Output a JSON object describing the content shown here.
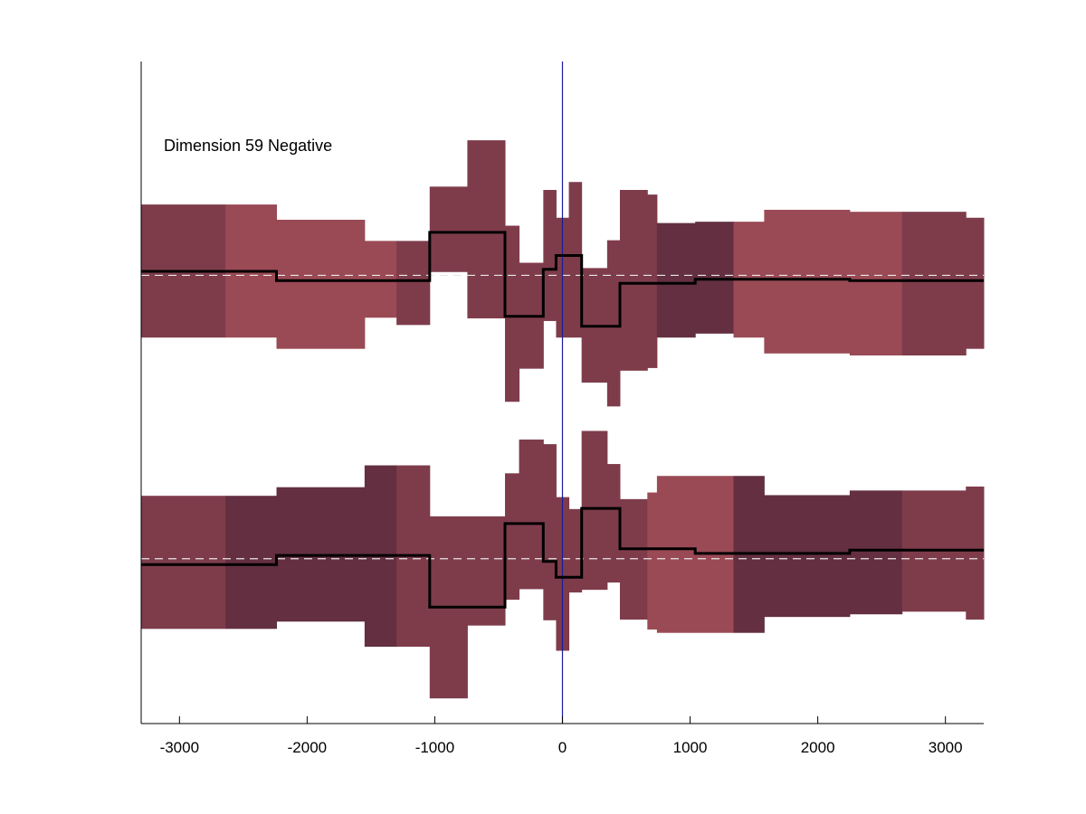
{
  "chart_data": {
    "type": "step-band",
    "title": "",
    "annotation": "Dimension 59 Negative",
    "xlabel": "",
    "ylabel": "",
    "xlim": [
      -3300,
      3300
    ],
    "ylim": [
      0,
      100
    ],
    "x_ticks": [
      -3000,
      -2000,
      -1000,
      0,
      1000,
      2000,
      3000
    ],
    "x_tick_labels": [
      "-3000",
      "-2000",
      "-1000",
      "0",
      "1000",
      "2000",
      "3000"
    ],
    "y_ticks_visible": false,
    "grid": false,
    "reference_line_x": 0,
    "colors": {
      "band_light": "#9a4a55",
      "band_mid": "#7e3c4b",
      "band_dark": "#632f41",
      "line": "#000000",
      "baseline_dashed": "#e8e8e8",
      "reference_line": "#1a1a9c"
    },
    "series": [
      {
        "baseline": 67.7,
        "segments": [
          {
            "x0": -3300,
            "x1": -2640,
            "lo": 58.3,
            "hi": 78.4,
            "y": 68.3,
            "shade": "mid"
          },
          {
            "x0": -2640,
            "x1": -2240,
            "lo": 58.3,
            "hi": 78.4,
            "y": 68.3,
            "shade": "light"
          },
          {
            "x0": -2240,
            "x1": -1550,
            "lo": 56.6,
            "hi": 76.1,
            "y": 66.9,
            "shade": "light"
          },
          {
            "x0": -1550,
            "x1": -1300,
            "lo": 61.3,
            "hi": 72.9,
            "y": 66.9,
            "shade": "light"
          },
          {
            "x0": -1300,
            "x1": -1040,
            "lo": 60.2,
            "hi": 72.9,
            "y": 66.9,
            "shade": "mid"
          },
          {
            "x0": -1040,
            "x1": -745,
            "lo": 68.2,
            "hi": 81.1,
            "y": 74.2,
            "shade": "mid"
          },
          {
            "x0": -745,
            "x1": -450,
            "lo": 61.2,
            "hi": 88.1,
            "y": 74.2,
            "shade": "mid"
          },
          {
            "x0": -450,
            "x1": -340,
            "lo": 48.6,
            "hi": 75.2,
            "y": 61.5,
            "shade": "mid"
          },
          {
            "x0": -340,
            "x1": -150,
            "lo": 53.6,
            "hi": 69.6,
            "y": 61.5,
            "shade": "mid"
          },
          {
            "x0": -150,
            "x1": -50,
            "lo": 60.8,
            "hi": 80.6,
            "y": 68.6,
            "shade": "mid"
          },
          {
            "x0": -50,
            "x1": 50,
            "lo": 58.3,
            "hi": 76.4,
            "y": 70.7,
            "shade": "mid"
          },
          {
            "x0": 50,
            "x1": 150,
            "lo": 58.3,
            "hi": 81.8,
            "y": 70.7,
            "shade": "mid"
          },
          {
            "x0": 150,
            "x1": 350,
            "lo": 51.5,
            "hi": 68.8,
            "y": 60.0,
            "shade": "mid"
          },
          {
            "x0": 350,
            "x1": 450,
            "lo": 47.9,
            "hi": 73.0,
            "y": 60.0,
            "shade": "mid"
          },
          {
            "x0": 450,
            "x1": 665,
            "lo": 53.3,
            "hi": 80.6,
            "y": 66.5,
            "shade": "mid"
          },
          {
            "x0": 665,
            "x1": 740,
            "lo": 53.7,
            "hi": 79.9,
            "y": 66.5,
            "shade": "mid"
          },
          {
            "x0": 740,
            "x1": 1040,
            "lo": 58.3,
            "hi": 75.6,
            "y": 66.5,
            "shade": "dark"
          },
          {
            "x0": 1040,
            "x1": 1340,
            "lo": 58.9,
            "hi": 75.8,
            "y": 67.1,
            "shade": "dark"
          },
          {
            "x0": 1340,
            "x1": 1580,
            "lo": 58.3,
            "hi": 75.8,
            "y": 67.1,
            "shade": "light"
          },
          {
            "x0": 1580,
            "x1": 2250,
            "lo": 55.9,
            "hi": 77.6,
            "y": 67.1,
            "shade": "light"
          },
          {
            "x0": 2250,
            "x1": 2660,
            "lo": 55.6,
            "hi": 77.3,
            "y": 66.9,
            "shade": "light"
          },
          {
            "x0": 2660,
            "x1": 3160,
            "lo": 55.6,
            "hi": 77.3,
            "y": 66.9,
            "shade": "mid"
          },
          {
            "x0": 3160,
            "x1": 3300,
            "lo": 56.6,
            "hi": 76.4,
            "y": 66.9,
            "shade": "mid"
          }
        ]
      },
      {
        "baseline": 24.9,
        "segments": [
          {
            "x0": -3300,
            "x1": -2640,
            "lo": 14.3,
            "hi": 34.4,
            "y": 24.0,
            "shade": "mid"
          },
          {
            "x0": -2640,
            "x1": -2240,
            "lo": 14.3,
            "hi": 34.4,
            "y": 24.0,
            "shade": "dark"
          },
          {
            "x0": -2240,
            "x1": -1550,
            "lo": 15.4,
            "hi": 35.7,
            "y": 25.4,
            "shade": "dark"
          },
          {
            "x0": -1550,
            "x1": -1300,
            "lo": 11.6,
            "hi": 39.0,
            "y": 25.4,
            "shade": "dark"
          },
          {
            "x0": -1300,
            "x1": -1040,
            "lo": 11.6,
            "hi": 39.0,
            "y": 25.4,
            "shade": "mid"
          },
          {
            "x0": -1040,
            "x1": -745,
            "lo": 3.8,
            "hi": 31.3,
            "y": 17.6,
            "shade": "mid"
          },
          {
            "x0": -745,
            "x1": -450,
            "lo": 14.8,
            "hi": 31.3,
            "y": 17.6,
            "shade": "mid"
          },
          {
            "x0": -450,
            "x1": -340,
            "lo": 18.7,
            "hi": 37.8,
            "y": 30.2,
            "shade": "mid"
          },
          {
            "x0": -340,
            "x1": -150,
            "lo": 20.3,
            "hi": 42.9,
            "y": 30.2,
            "shade": "mid"
          },
          {
            "x0": -150,
            "x1": -50,
            "lo": 15.6,
            "hi": 42.2,
            "y": 24.5,
            "shade": "mid"
          },
          {
            "x0": -50,
            "x1": 50,
            "lo": 11.0,
            "hi": 34.2,
            "y": 22.1,
            "shade": "mid"
          },
          {
            "x0": 50,
            "x1": 150,
            "lo": 19.8,
            "hi": 32.4,
            "y": 22.1,
            "shade": "mid"
          },
          {
            "x0": 150,
            "x1": 350,
            "lo": 20.2,
            "hi": 44.2,
            "y": 32.5,
            "shade": "mid"
          },
          {
            "x0": 350,
            "x1": 450,
            "lo": 21.3,
            "hi": 39.2,
            "y": 32.5,
            "shade": "mid"
          },
          {
            "x0": 450,
            "x1": 665,
            "lo": 15.7,
            "hi": 33.9,
            "y": 26.4,
            "shade": "mid"
          },
          {
            "x0": 665,
            "x1": 740,
            "lo": 14.2,
            "hi": 34.9,
            "y": 26.4,
            "shade": "light"
          },
          {
            "x0": 740,
            "x1": 1040,
            "lo": 13.7,
            "hi": 37.4,
            "y": 26.4,
            "shade": "light"
          },
          {
            "x0": 1040,
            "x1": 1340,
            "lo": 13.7,
            "hi": 37.4,
            "y": 25.7,
            "shade": "light"
          },
          {
            "x0": 1340,
            "x1": 1580,
            "lo": 13.7,
            "hi": 37.4,
            "y": 25.7,
            "shade": "dark"
          },
          {
            "x0": 1580,
            "x1": 2250,
            "lo": 16.1,
            "hi": 34.5,
            "y": 25.7,
            "shade": "dark"
          },
          {
            "x0": 2250,
            "x1": 2660,
            "lo": 16.5,
            "hi": 35.2,
            "y": 26.2,
            "shade": "dark"
          },
          {
            "x0": 2660,
            "x1": 3160,
            "lo": 16.9,
            "hi": 35.2,
            "y": 26.2,
            "shade": "mid"
          },
          {
            "x0": 3160,
            "x1": 3300,
            "lo": 15.7,
            "hi": 35.8,
            "y": 26.2,
            "shade": "mid"
          }
        ]
      }
    ]
  }
}
